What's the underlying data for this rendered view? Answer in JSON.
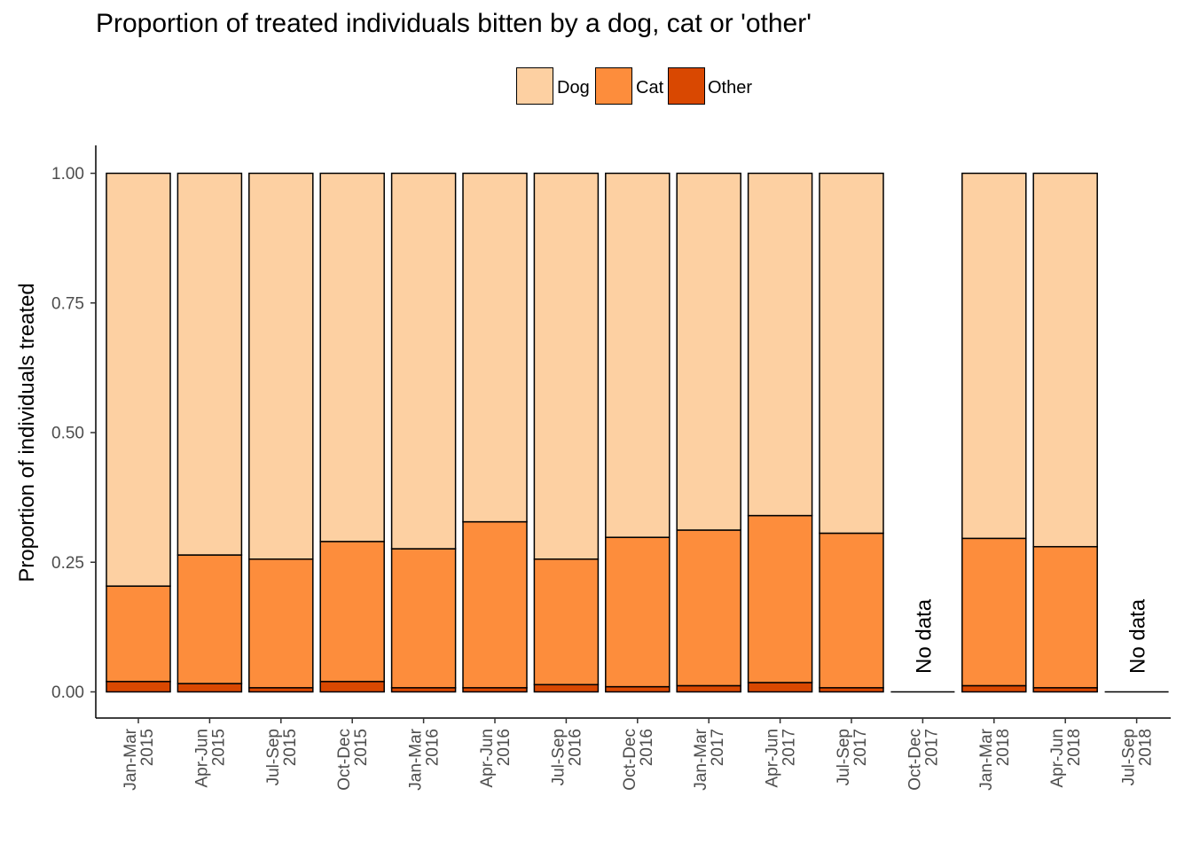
{
  "chart_data": {
    "type": "bar",
    "stacked": true,
    "title": "Proportion of treated individuals bitten by a dog, cat or 'other'",
    "xlabel": "",
    "ylabel": "Proportion of individuals treated",
    "ylim": [
      0,
      1
    ],
    "yticks": [
      "0.00",
      "0.25",
      "0.50",
      "0.75",
      "1.00"
    ],
    "categories": [
      [
        "Jan-Mar",
        "2015"
      ],
      [
        "Apr-Jun",
        "2015"
      ],
      [
        "Jul-Sep",
        "2015"
      ],
      [
        "Oct-Dec",
        "2015"
      ],
      [
        "Jan-Mar",
        "2016"
      ],
      [
        "Apr-Jun",
        "2016"
      ],
      [
        "Jul-Sep",
        "2016"
      ],
      [
        "Oct-Dec",
        "2016"
      ],
      [
        "Jan-Mar",
        "2017"
      ],
      [
        "Apr-Jun",
        "2017"
      ],
      [
        "Jul-Sep",
        "2017"
      ],
      [
        "Oct-Dec",
        "2017"
      ],
      [
        "Jan-Mar",
        "2018"
      ],
      [
        "Apr-Jun",
        "2018"
      ],
      [
        "Jul-Sep",
        "2018"
      ]
    ],
    "series": [
      {
        "name": "Other",
        "color": "#D94801",
        "values": [
          0.02,
          0.016,
          0.008,
          0.02,
          0.008,
          0.008,
          0.014,
          0.01,
          0.012,
          0.018,
          0.008,
          null,
          0.012,
          0.008,
          null
        ]
      },
      {
        "name": "Cat",
        "color": "#FD8D3C",
        "values": [
          0.184,
          0.248,
          0.248,
          0.27,
          0.268,
          0.32,
          0.242,
          0.288,
          0.3,
          0.322,
          0.298,
          null,
          0.284,
          0.272,
          null
        ]
      },
      {
        "name": "Dog",
        "color": "#FDD0A2",
        "values": [
          0.796,
          0.736,
          0.744,
          0.71,
          0.724,
          0.672,
          0.744,
          0.702,
          0.688,
          0.66,
          0.694,
          null,
          0.704,
          0.72,
          null
        ]
      }
    ],
    "annotations": [
      {
        "category_index": 11,
        "text": "No data"
      },
      {
        "category_index": 14,
        "text": "No data"
      }
    ],
    "legend": {
      "position": "top",
      "entries": [
        "Dog",
        "Cat",
        "Other"
      ]
    },
    "grid": false
  }
}
